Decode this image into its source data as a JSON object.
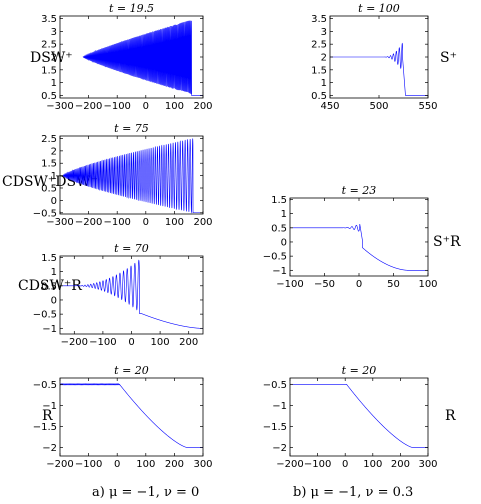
{
  "captions": [
    {
      "id": "a",
      "text": "a) μ = −1, ν = 0"
    },
    {
      "id": "b",
      "text": "b) μ = −1, ν = 0.3"
    }
  ],
  "row_labels": [
    {
      "id": "dsw",
      "text": "DSW⁺"
    },
    {
      "id": "s",
      "text": "S⁺"
    },
    {
      "id": "cdsw-dsw",
      "text": "CDSW⁺DSW⁺"
    },
    {
      "id": "sr",
      "text": "S⁺R"
    },
    {
      "id": "cdsw-r",
      "text": "CDSW⁺R"
    },
    {
      "id": "r-left",
      "text": "R"
    },
    {
      "id": "r-right",
      "text": "R"
    }
  ],
  "chart_data": [
    {
      "id": "a1",
      "type": "line",
      "title": "t = 19.5",
      "xlim": [
        -300,
        200
      ],
      "ylim": [
        0.4,
        3.6
      ],
      "xticks": [
        -300,
        -200,
        -100,
        0,
        100,
        200
      ],
      "yticks": [
        0.5,
        1,
        1.5,
        2,
        2.5,
        3,
        3.5
      ],
      "series": [
        {
          "color": "#0000ff",
          "kind": "dsw",
          "base": 2.0,
          "x_start": -220,
          "x_front": 160,
          "amp_max": 1.45,
          "level_after": 0.5,
          "period_start": 3.5,
          "period_end": 3.0,
          "x_end": 200
        }
      ]
    },
    {
      "id": "b1",
      "type": "line",
      "title": "t = 100",
      "xlim": [
        450,
        550
      ],
      "ylim": [
        0.4,
        3.6
      ],
      "xticks": [
        450,
        500,
        550
      ],
      "yticks": [
        0.5,
        1,
        1.5,
        2,
        2.5,
        3,
        3.5
      ],
      "series": [
        {
          "color": "#0000ff",
          "kind": "soliton_train",
          "base": 2.0,
          "x_start": 450,
          "osc_start": 505,
          "x_front": 524,
          "amp_max": 0.55,
          "period_start": 3.0,
          "period_end": 3.0,
          "level_after": 0.5,
          "x_end": 550
        }
      ]
    },
    {
      "id": "a2",
      "type": "line",
      "title": "t = 75",
      "xlim": [
        -300,
        200
      ],
      "ylim": [
        -0.55,
        2.6
      ],
      "xticks": [
        -300,
        -200,
        -100,
        0,
        100,
        200
      ],
      "yticks": [
        -0.5,
        0,
        0.5,
        1,
        1.5,
        2,
        2.5
      ],
      "series": [
        {
          "color": "#0000ff",
          "kind": "cdsw_dsw",
          "base": 1.0,
          "x_start": -290,
          "x_front": 165,
          "amp_max": 1.5,
          "level_after": -0.5,
          "period_start": 3.5,
          "period_end": 9.0,
          "x_end": 200
        }
      ]
    },
    {
      "id": "b3",
      "type": "line",
      "title": "t = 23",
      "xlim": [
        -100,
        100
      ],
      "ylim": [
        -1.2,
        1.55
      ],
      "xticks": [
        -100,
        -50,
        0,
        50,
        100
      ],
      "yticks": [
        -1,
        -0.5,
        0,
        0.5,
        1,
        1.5
      ],
      "series": [
        {
          "color": "#0000ff",
          "kind": "s_r",
          "base": 0.5,
          "x_start": -100,
          "osc_start": -25,
          "x_front": 5,
          "amp_max": 0.18,
          "x_rar_end": 72,
          "level_after": -1.0,
          "x_end": 100
        }
      ]
    },
    {
      "id": "a3",
      "type": "line",
      "title": "t = 70",
      "xlim": [
        -250,
        250
      ],
      "ylim": [
        -1.2,
        1.55
      ],
      "xticks": [
        -200,
        -100,
        0,
        100,
        200
      ],
      "yticks": [
        -1,
        -0.5,
        0,
        0.5,
        1,
        1.5
      ],
      "series": [
        {
          "color": "#0000ff",
          "kind": "cdsw_r",
          "base": 0.5,
          "x_start": -250,
          "osc_start": -200,
          "x_front": 28,
          "amp_max": 0.92,
          "x_flat_end": 35,
          "level_mid": -0.48,
          "x_rar_end": 245,
          "level_after": -1.0,
          "x_end": 250,
          "period_start": 9.0,
          "period_end": 14.0
        }
      ]
    },
    {
      "id": "a4",
      "type": "line",
      "title": "t = 20",
      "xlim": [
        -200,
        300
      ],
      "ylim": [
        -2.2,
        -0.35
      ],
      "xticks": [
        -200,
        -100,
        0,
        100,
        200,
        300
      ],
      "yticks": [
        -2,
        -1.5,
        -1,
        -0.5
      ],
      "series": [
        {
          "color": "#0000ff",
          "kind": "rarefaction_osc",
          "base": -0.5,
          "x_start": -200,
          "osc_start": -200,
          "x_rar_start": 8,
          "amp_max": 0.015,
          "x_rar_end": 245,
          "level_after": -2.0,
          "x_end": 300
        }
      ]
    },
    {
      "id": "b4",
      "type": "line",
      "title": "t = 20",
      "xlim": [
        -200,
        300
      ],
      "ylim": [
        -2.2,
        -0.35
      ],
      "xticks": [
        -200,
        -100,
        0,
        100,
        200,
        300
      ],
      "yticks": [
        -2,
        -1.5,
        -1,
        -0.5
      ],
      "series": [
        {
          "color": "#0000ff",
          "kind": "rarefaction",
          "base": -0.5,
          "x_start": -200,
          "x_rar_start": 5,
          "x_rar_end": 245,
          "level_after": -2.0,
          "x_end": 300
        }
      ]
    }
  ]
}
